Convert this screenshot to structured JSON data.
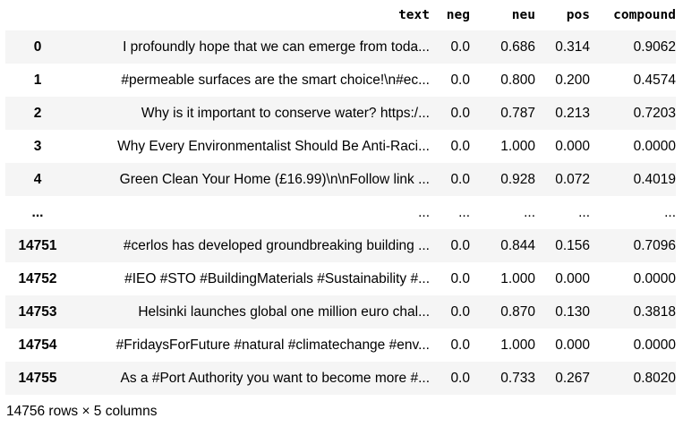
{
  "columns": {
    "index": "",
    "text": "text",
    "neg": "neg",
    "neu": "neu",
    "pos": "pos",
    "compound": "compound"
  },
  "rows": [
    {
      "index": "0",
      "text": "I profoundly hope that we can emerge from toda...",
      "neg": "0.0",
      "neu": "0.686",
      "pos": "0.314",
      "compound": "0.9062"
    },
    {
      "index": "1",
      "text": "#permeable surfaces are the smart choice!\\n#ec...",
      "neg": "0.0",
      "neu": "0.800",
      "pos": "0.200",
      "compound": "0.4574"
    },
    {
      "index": "2",
      "text": "Why is it important to conserve water? https:/...",
      "neg": "0.0",
      "neu": "0.787",
      "pos": "0.213",
      "compound": "0.7203"
    },
    {
      "index": "3",
      "text": "Why Every Environmentalist Should Be Anti-Raci...",
      "neg": "0.0",
      "neu": "1.000",
      "pos": "0.000",
      "compound": "0.0000"
    },
    {
      "index": "4",
      "text": "Green Clean Your Home (£16.99)\\n\\nFollow link ...",
      "neg": "0.0",
      "neu": "0.928",
      "pos": "0.072",
      "compound": "0.4019"
    },
    {
      "index": "...",
      "text": "...",
      "neg": "...",
      "neu": "...",
      "pos": "...",
      "compound": "..."
    },
    {
      "index": "14751",
      "text": "#cerlos has developed groundbreaking building ...",
      "neg": "0.0",
      "neu": "0.844",
      "pos": "0.156",
      "compound": "0.7096"
    },
    {
      "index": "14752",
      "text": "#IEO #STO #BuildingMaterials #Sustainability #...",
      "neg": "0.0",
      "neu": "1.000",
      "pos": "0.000",
      "compound": "0.0000"
    },
    {
      "index": "14753",
      "text": "Helsinki launches global one million euro chal...",
      "neg": "0.0",
      "neu": "0.870",
      "pos": "0.130",
      "compound": "0.3818"
    },
    {
      "index": "14754",
      "text": "#FridaysForFuture #natural #climatechange #env...",
      "neg": "0.0",
      "neu": "1.000",
      "pos": "0.000",
      "compound": "0.0000"
    },
    {
      "index": "14755",
      "text": "As a #Port Authority you want to become more #...",
      "neg": "0.0",
      "neu": "0.733",
      "pos": "0.267",
      "compound": "0.8020"
    }
  ],
  "footer": "14756 rows × 5 columns"
}
